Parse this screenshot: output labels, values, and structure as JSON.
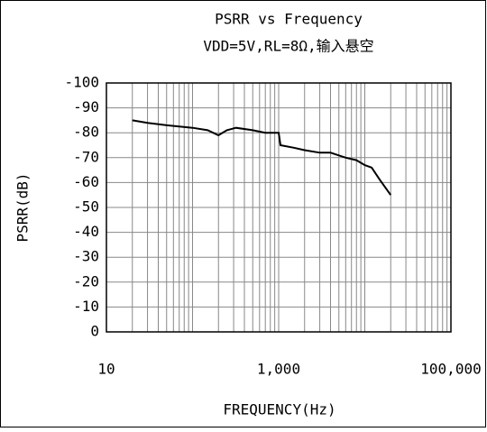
{
  "chart_data": {
    "type": "line",
    "title": "PSRR vs Frequency",
    "subtitle": "VDD=5V,RL=8Ω,输入悬空",
    "x_label": "FREQUENCY(Hz)",
    "y_label": "PSRR(dB)",
    "x_log": true,
    "grid": true,
    "minor_grid": true,
    "xlim": [
      10,
      100000
    ],
    "xticks": [
      10,
      {
        "value": 1000,
        "label": "1,000"
      },
      {
        "value": 100000,
        "label": "100,000"
      }
    ],
    "ylim": [
      0,
      -100
    ],
    "yticks": [
      -100,
      -90,
      -80,
      -70,
      -60,
      -50,
      -40,
      -30,
      -20,
      -10,
      0
    ],
    "series": [
      {
        "name": "PSRR",
        "color": "#000000",
        "x": [
          20,
          30,
          50,
          100,
          150,
          200,
          250,
          320,
          500,
          700,
          1000,
          1050,
          1500,
          2000,
          3000,
          4000,
          6000,
          8000,
          10000,
          12000,
          15000,
          20000
        ],
        "values": [
          -85,
          -84,
          -83,
          -82,
          -81,
          -79,
          -81,
          -82,
          -81,
          -80,
          -80,
          -75,
          -74,
          -73,
          -72,
          -72,
          -70,
          -69,
          -67,
          -66,
          -61,
          -55
        ]
      }
    ]
  }
}
